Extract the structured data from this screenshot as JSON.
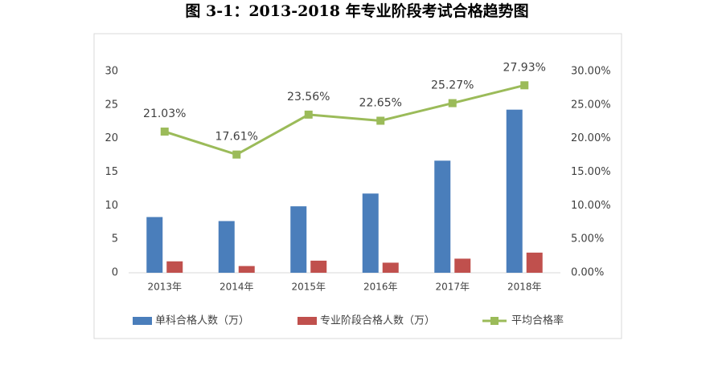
{
  "chart_data": {
    "type": "bar",
    "title": "图 3-1：2013-2018 年专业阶段考试合格趋势图",
    "categories": [
      "2013年",
      "2014年",
      "2015年",
      "2016年",
      "2017年",
      "2018年"
    ],
    "series": [
      {
        "name": "单科合格人数（万）",
        "color": "#4a7ebb",
        "values": [
          8.3,
          7.7,
          9.9,
          11.8,
          16.7,
          24.3
        ]
      },
      {
        "name": "专业阶段合格人数（万）",
        "color": "#c0504d",
        "values": [
          1.7,
          1.0,
          1.8,
          1.5,
          2.1,
          3.0
        ]
      },
      {
        "name": "平均合格率",
        "color": "#9bbb59",
        "type": "line",
        "axis": "y2",
        "values": [
          21.03,
          17.61,
          23.56,
          22.65,
          25.27,
          27.93
        ],
        "value_labels": [
          "21.03%",
          "17.61%",
          "23.56%",
          "22.65%",
          "25.27%",
          "27.93%"
        ]
      }
    ],
    "ylim": [
      0,
      30
    ],
    "yticks": [
      0,
      5,
      10,
      15,
      20,
      25,
      30
    ],
    "y2lim": [
      0,
      30
    ],
    "y2ticks": [
      {
        "value": 0,
        "label": "0.00%"
      },
      {
        "value": 5,
        "label": "5.00%"
      },
      {
        "value": 10,
        "label": "10.00%"
      },
      {
        "value": 15,
        "label": "15.00%"
      },
      {
        "value": 20,
        "label": "20.00%"
      },
      {
        "value": 25,
        "label": "25.00%"
      },
      {
        "value": 30,
        "label": "30.00%"
      }
    ],
    "grid": false,
    "legend": "bottom"
  }
}
